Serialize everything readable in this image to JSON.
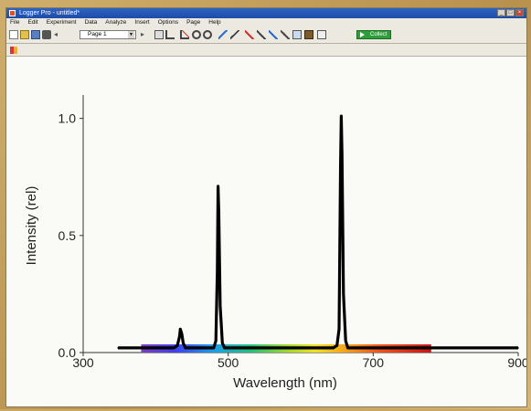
{
  "window": {
    "title": "Logger Pro - untitled*"
  },
  "menu": [
    "File",
    "Edit",
    "Experiment",
    "Data",
    "Analyze",
    "Insert",
    "Options",
    "Page",
    "Help"
  ],
  "toolbar": {
    "page_value": "Page 1",
    "collect_label": "Collect"
  },
  "chart_data": {
    "type": "line",
    "xlabel": "Wavelength (nm)",
    "ylabel": "Intensity (rel)",
    "xlim": [
      300,
      900
    ],
    "ylim": [
      0,
      1.1
    ],
    "x_ticks": [
      300,
      500,
      700,
      900
    ],
    "y_ticks": [
      0.0,
      0.5,
      1.0
    ],
    "x_tick_labels": [
      "300",
      "500",
      "700",
      "900"
    ],
    "y_tick_labels": [
      "0.0",
      "0.5",
      "1.0"
    ],
    "grid": false,
    "legend": "none",
    "spectrum_band": [
      380,
      780
    ],
    "series": [
      {
        "x": [
          348,
          380,
          425,
          430,
          433,
          434,
          436,
          438,
          441,
          445,
          470,
          480,
          483,
          485,
          486,
          487,
          489,
          492,
          495,
          520,
          600,
          645,
          650,
          653,
          655,
          656,
          657,
          659,
          662,
          665,
          700,
          780,
          850,
          900
        ],
        "y": [
          0.02,
          0.02,
          0.02,
          0.03,
          0.07,
          0.1,
          0.08,
          0.04,
          0.02,
          0.02,
          0.02,
          0.02,
          0.05,
          0.35,
          0.71,
          0.6,
          0.2,
          0.04,
          0.02,
          0.02,
          0.02,
          0.02,
          0.03,
          0.1,
          0.8,
          1.01,
          0.85,
          0.25,
          0.05,
          0.02,
          0.02,
          0.02,
          0.02,
          0.02
        ],
        "color": "#000000"
      }
    ]
  },
  "colors": {
    "line": "#000000",
    "axis": "#333333",
    "title_bar": "#2f63c4"
  }
}
